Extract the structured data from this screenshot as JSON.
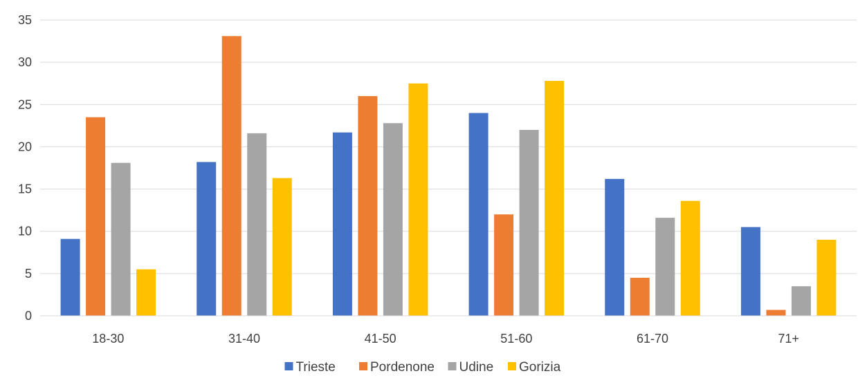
{
  "chart_data": {
    "type": "bar",
    "categories": [
      "18-30",
      "31-40",
      "41-50",
      "51-60",
      "61-70",
      "71+"
    ],
    "series": [
      {
        "name": "Trieste",
        "color": "#4472c4",
        "values": [
          9.1,
          18.2,
          21.7,
          24.0,
          16.2,
          10.5
        ]
      },
      {
        "name": "Pordenone",
        "color": "#ed7d31",
        "values": [
          23.5,
          33.1,
          26.0,
          12.0,
          4.5,
          0.7
        ]
      },
      {
        "name": "Udine",
        "color": "#a5a5a5",
        "values": [
          18.1,
          21.6,
          22.8,
          22.0,
          11.6,
          3.5
        ]
      },
      {
        "name": "Gorizia",
        "color": "#ffc000",
        "values": [
          5.5,
          16.3,
          27.5,
          27.8,
          13.6,
          9.0
        ]
      }
    ],
    "ylim": [
      0,
      35
    ],
    "yticks": [
      0,
      5,
      10,
      15,
      20,
      25,
      30,
      35
    ],
    "grid": true,
    "legend": "bottom-center",
    "title": "",
    "xlabel": "",
    "ylabel": ""
  }
}
